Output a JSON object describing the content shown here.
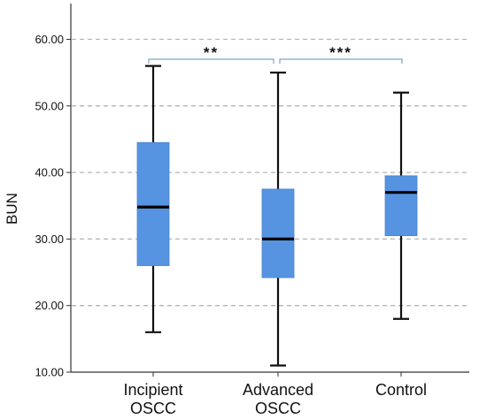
{
  "chart_data": {
    "type": "boxplot",
    "title": "",
    "xlabel": "",
    "ylabel": "BUN",
    "ylim": [
      10,
      65
    ],
    "yticks": [
      "10.00",
      "20.00",
      "30.00",
      "40.00",
      "50.00",
      "60.00"
    ],
    "grid": "horizontal-dashed",
    "box_color": "#5694e2",
    "categories": [
      {
        "line1": "Incipient",
        "line2": "OSCC"
      },
      {
        "line1": "Advanced",
        "line2": "OSCC"
      },
      {
        "line1": "Control",
        "line2": ""
      }
    ],
    "boxes": [
      {
        "min": 16,
        "q1": 26,
        "median": 34.8,
        "q3": 44.5,
        "max": 56
      },
      {
        "min": 11,
        "q1": 24.2,
        "median": 30,
        "q3": 37.5,
        "max": 55
      },
      {
        "min": 18,
        "q1": 30.5,
        "median": 37,
        "q3": 39.5,
        "max": 52
      }
    ],
    "significance": [
      {
        "from": 0,
        "to": 1,
        "label": "**"
      },
      {
        "from": 1,
        "to": 2,
        "label": "***"
      }
    ]
  }
}
